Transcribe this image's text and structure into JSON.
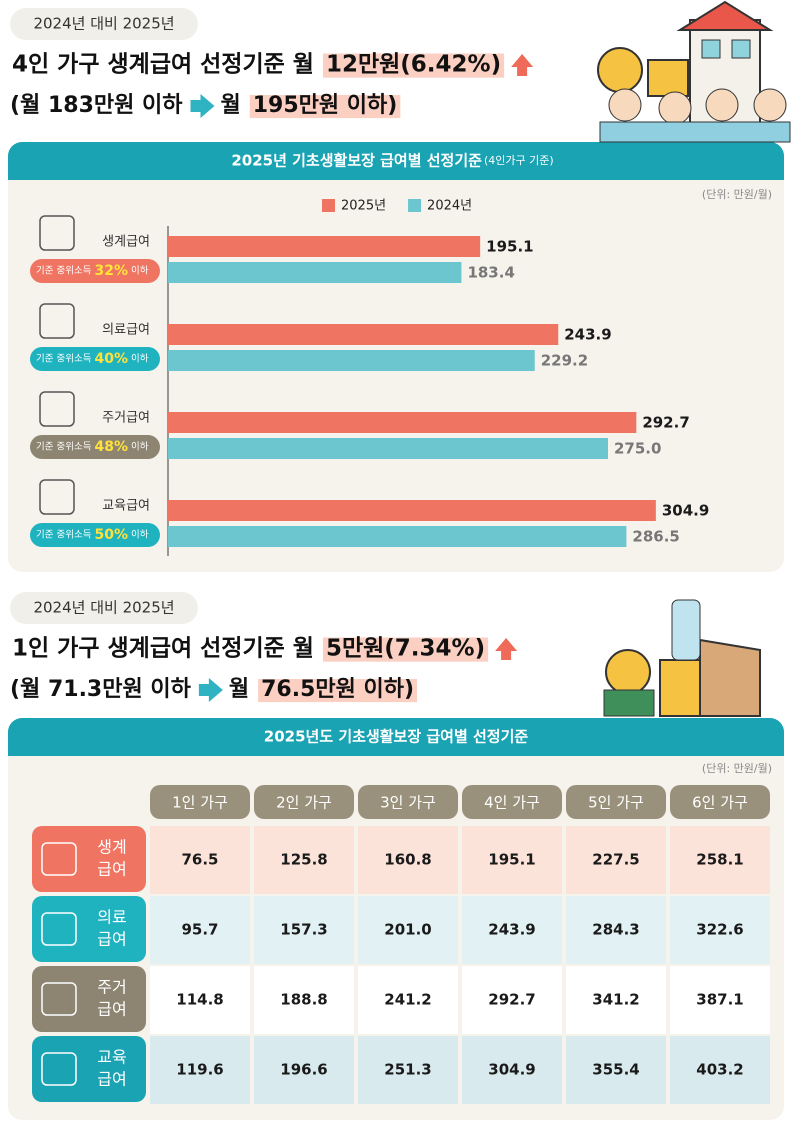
{
  "section1": {
    "badge": "2024년 대비 2025년",
    "headline": "4인 가구 생계급여 선정기준 월",
    "headline_highlight": "12만원(6.42%)",
    "sub_from": "(월 183만원 이하",
    "sub_to": "월",
    "sub_highlight": "195만원 이하)"
  },
  "chart_data": {
    "type": "bar",
    "orientation": "horizontal",
    "title": "2025년 기초생활보장 급여별 선정기준",
    "subtitle": "(4인가구 기준)",
    "unit": "(단위: 만원/월)",
    "categories": [
      "생계급여",
      "의료급여",
      "주거급여",
      "교육급여"
    ],
    "category_notes": [
      {
        "prefix": "기준 중위소득",
        "highlight": "32%",
        "suffix": "이하",
        "color": "#ef7462"
      },
      {
        "prefix": "기준 중위소득",
        "highlight": "40%",
        "suffix": "이하",
        "color": "#1fb3c0"
      },
      {
        "prefix": "기준 중위소득",
        "highlight": "48%",
        "suffix": "이하",
        "color": "#8d8471"
      },
      {
        "prefix": "기준 중위소득",
        "highlight": "50%",
        "suffix": "이하",
        "color": "#1fb3c0"
      }
    ],
    "series": [
      {
        "name": "2025년",
        "color": "#ef7462",
        "values": [
          195.1,
          243.9,
          292.7,
          304.9
        ],
        "value_labels": [
          "195.1",
          "243.9",
          "292.7",
          "304.9"
        ]
      },
      {
        "name": "2024년",
        "color": "#6cc6cf",
        "values": [
          183.4,
          229.2,
          275.0,
          286.5
        ],
        "value_labels": [
          "183.4",
          "229.2",
          "275.0",
          "286.5"
        ]
      }
    ],
    "xlim": [
      0,
      330
    ],
    "legend": "top"
  },
  "section2": {
    "badge": "2024년 대비 2025년",
    "headline": "1인 가구 생계급여 선정기준 월",
    "headline_highlight": "5만원(7.34%)",
    "sub_from": "(월 71.3만원 이하",
    "sub_to": "월",
    "sub_highlight": "76.5만원 이하)"
  },
  "table": {
    "title": "2025년도 기초생활보장 급여별 선정기준",
    "unit": "(단위: 만원/월)",
    "columns": [
      "1인 가구",
      "2인 가구",
      "3인 가구",
      "4인 가구",
      "5인 가구",
      "6인 가구"
    ],
    "rows": [
      {
        "label": [
          "생계",
          "급여"
        ],
        "cells": [
          "76.5",
          "125.8",
          "160.8",
          "195.1",
          "227.5",
          "258.1"
        ]
      },
      {
        "label": [
          "의료",
          "급여"
        ],
        "cells": [
          "95.7",
          "157.3",
          "201.0",
          "243.9",
          "284.3",
          "322.6"
        ]
      },
      {
        "label": [
          "주거",
          "급여"
        ],
        "cells": [
          "114.8",
          "188.8",
          "241.2",
          "292.7",
          "341.2",
          "387.1"
        ]
      },
      {
        "label": [
          "교육",
          "급여"
        ],
        "cells": [
          "119.6",
          "196.6",
          "251.3",
          "304.9",
          "355.4",
          "403.2"
        ]
      }
    ]
  }
}
